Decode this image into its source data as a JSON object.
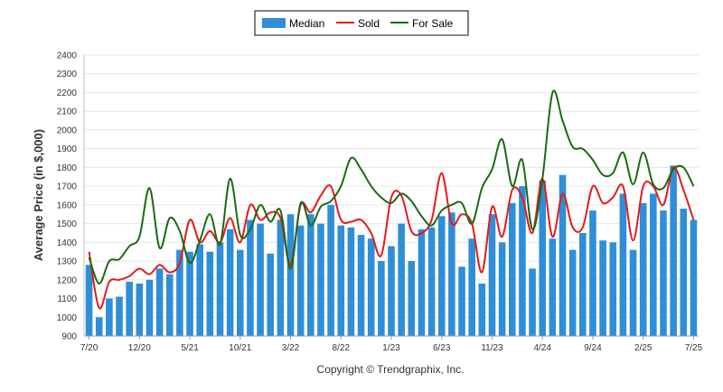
{
  "chart_data": {
    "type": "bar",
    "title": "",
    "ylabel": "Average Price (in $,000)",
    "xlabel": "",
    "ylim": [
      900,
      2400
    ],
    "y_ticks": [
      900,
      1000,
      1100,
      1200,
      1300,
      1400,
      1500,
      1600,
      1700,
      1800,
      1900,
      2000,
      2100,
      2200,
      2300,
      2400
    ],
    "x_tick_labels": [
      "7/20",
      "12/20",
      "5/21",
      "10/21",
      "3/22",
      "8/22",
      "1/23",
      "6/23",
      "11/23",
      "4/24",
      "9/24",
      "2/25",
      "7/25"
    ],
    "grid": true,
    "legend_position": "top-center",
    "copyright": "Copyright © Trendgraphix, Inc.",
    "colors": {
      "median": "#2f8ed8",
      "sold": "#e41a1c",
      "for_sale": "#1a6b12"
    },
    "categories": [
      "7/20",
      "8/20",
      "9/20",
      "10/20",
      "11/20",
      "12/20",
      "1/21",
      "2/21",
      "3/21",
      "4/21",
      "5/21",
      "6/21",
      "7/21",
      "8/21",
      "9/21",
      "10/21",
      "11/21",
      "12/21",
      "1/22",
      "2/22",
      "3/22",
      "4/22",
      "5/22",
      "6/22",
      "7/22",
      "8/22",
      "9/22",
      "10/22",
      "11/22",
      "12/22",
      "1/23",
      "2/23",
      "3/23",
      "4/23",
      "5/23",
      "6/23",
      "7/23",
      "8/23",
      "9/23",
      "10/23",
      "11/23",
      "12/23",
      "1/24",
      "2/24",
      "3/24",
      "4/24",
      "5/24",
      "6/24",
      "7/24",
      "8/24",
      "9/24",
      "10/24",
      "11/24",
      "12/24",
      "1/25",
      "2/25",
      "3/25",
      "4/25",
      "5/25",
      "6/25",
      "7/25"
    ],
    "series": [
      {
        "name": "Median",
        "kind": "bar",
        "values": [
          1280,
          1000,
          1100,
          1110,
          1190,
          1180,
          1200,
          1260,
          1230,
          1360,
          1350,
          1390,
          1350,
          1400,
          1470,
          1360,
          1520,
          1500,
          1340,
          1520,
          1550,
          1490,
          1550,
          1500,
          1600,
          1490,
          1480,
          1440,
          1420,
          1300,
          1380,
          1500,
          1300,
          1470,
          1480,
          1540,
          1560,
          1270,
          1420,
          1180,
          1550,
          1400,
          1610,
          1700,
          1260,
          1730,
          1420,
          1760,
          1360,
          1450,
          1570,
          1410,
          1400,
          1660,
          1360,
          1610,
          1660,
          1570,
          1810,
          1580,
          1520
        ]
      },
      {
        "name": "Sold",
        "kind": "line",
        "values": [
          1350,
          1050,
          1190,
          1200,
          1220,
          1260,
          1230,
          1280,
          1240,
          1290,
          1520,
          1400,
          1460,
          1400,
          1530,
          1400,
          1600,
          1520,
          1560,
          1530,
          1280,
          1600,
          1560,
          1650,
          1700,
          1520,
          1510,
          1520,
          1450,
          1330,
          1640,
          1650,
          1460,
          1450,
          1520,
          1770,
          1500,
          1550,
          1500,
          1240,
          1590,
          1430,
          1680,
          1640,
          1450,
          1740,
          1430,
          1660,
          1480,
          1480,
          1700,
          1610,
          1640,
          1700,
          1410,
          1700,
          1700,
          1600,
          1800,
          1680,
          1520
        ]
      },
      {
        "name": "For Sale",
        "kind": "line",
        "values": [
          1320,
          1180,
          1300,
          1310,
          1380,
          1430,
          1690,
          1370,
          1530,
          1460,
          1290,
          1410,
          1550,
          1390,
          1740,
          1440,
          1470,
          1600,
          1510,
          1570,
          1260,
          1610,
          1490,
          1590,
          1620,
          1700,
          1850,
          1790,
          1700,
          1640,
          1610,
          1660,
          1620,
          1540,
          1490,
          1570,
          1600,
          1610,
          1500,
          1690,
          1790,
          1950,
          1700,
          1840,
          1470,
          1740,
          2200,
          2050,
          1910,
          1900,
          1840,
          1760,
          1770,
          1880,
          1710,
          1880,
          1710,
          1690,
          1790,
          1800,
          1700
        ]
      }
    ]
  }
}
